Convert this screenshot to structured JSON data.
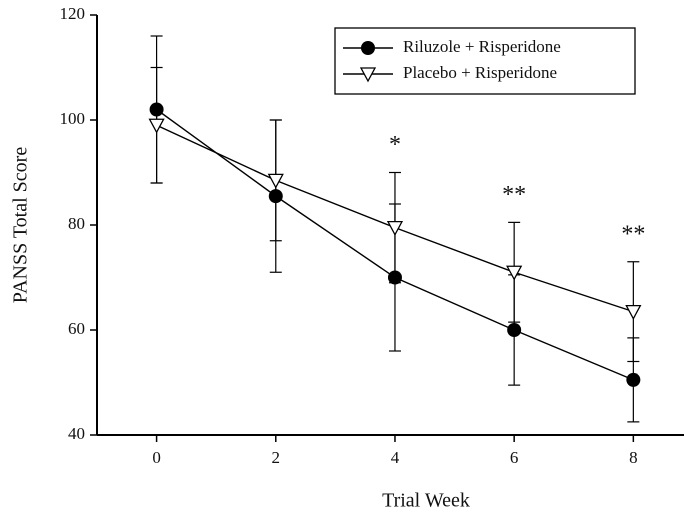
{
  "chart_data": {
    "type": "line",
    "xlabel": "Trial Week",
    "ylabel": "PANSS Total Score",
    "x": [
      0,
      2,
      4,
      6,
      8
    ],
    "series": [
      {
        "name": "Riluzole + Risperidone",
        "color": "#000000",
        "marker": "circle",
        "values": [
          102,
          85.5,
          70,
          60,
          50.5
        ],
        "errors": [
          14,
          14.5,
          14,
          10.5,
          8
        ]
      },
      {
        "name": "Placebo + Risperidone",
        "color": "#000000",
        "marker": "triangle-down",
        "values": [
          99,
          88.5,
          79.5,
          71,
          63.5
        ],
        "errors": [
          11,
          11.5,
          10.5,
          9.5,
          9.5
        ]
      }
    ],
    "annotations": [
      {
        "x": 4,
        "text": "*"
      },
      {
        "x": 6,
        "text": "**"
      },
      {
        "x": 8,
        "text": "**"
      }
    ],
    "xlim": [
      -1,
      8.85
    ],
    "xticks": [
      0,
      2,
      4,
      6,
      8
    ],
    "ylim": [
      40,
      120
    ],
    "yticks": [
      40,
      60,
      80,
      100,
      120
    ],
    "legend": "upper right",
    "grid": false
  }
}
